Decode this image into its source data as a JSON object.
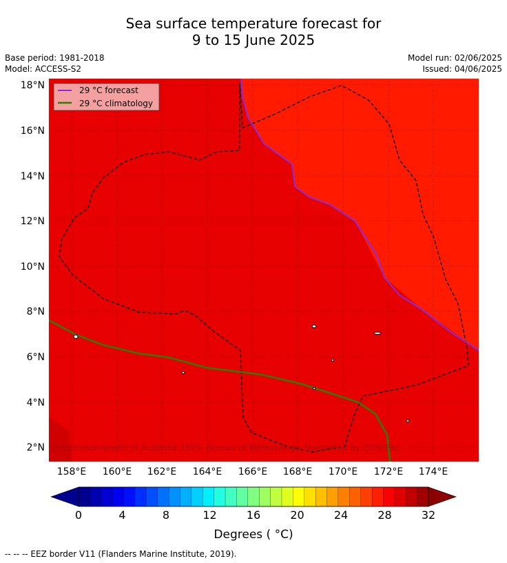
{
  "title": {
    "line1": "Sea surface temperature forecast for",
    "line2": "9 to 15 June 2025"
  },
  "meta": {
    "base_period": "Base period: 1981-2018",
    "model": "Model: ACCESS-S2",
    "model_run": "Model run: 02/06/2025",
    "issued": "Issued: 04/06/2025"
  },
  "map": {
    "lat_labels": [
      "18°N",
      "16°N",
      "14°N",
      "12°N",
      "10°N",
      "8°N",
      "6°N",
      "4°N",
      "2°N"
    ],
    "lon_labels": [
      "158°E",
      "160°E",
      "162°E",
      "164°E",
      "166°E",
      "168°E",
      "170°E",
      "172°E",
      "174°E"
    ],
    "legend": {
      "forecast": "29 °C  forecast",
      "climatology": "29 °C  climatology"
    },
    "copyright": "© Commonwealth of Australia 2025, Bureau of Meteorology. Supported by COSPPac",
    "colors": {
      "sst_28_29": "#e60000",
      "sst_29_30": "#ff1a00",
      "sst_27_28": "#d00000",
      "forecast_line": "#8a2be2",
      "climatology_line": "#2e7d00",
      "eez_border": "#000000"
    }
  },
  "colorbar": {
    "ticks": [
      "0",
      "4",
      "8",
      "12",
      "16",
      "20",
      "24",
      "28",
      "32"
    ],
    "label": "Degrees ( °C)",
    "colors": [
      "#00008f",
      "#0000b0",
      "#0000d0",
      "#0000f0",
      "#0010ff",
      "#0030ff",
      "#0050ff",
      "#0070ff",
      "#0090ff",
      "#00b0ff",
      "#00d0ff",
      "#00f0ff",
      "#20ffe0",
      "#40ffc0",
      "#60ffa0",
      "#80ff80",
      "#a0ff60",
      "#c0ff40",
      "#e0ff20",
      "#ffff00",
      "#ffe000",
      "#ffc000",
      "#ffa000",
      "#ff8000",
      "#ff6000",
      "#ff4000",
      "#ff2000",
      "#ff0000",
      "#e00000",
      "#c00000",
      "#a00000"
    ]
  },
  "footer": "--  --  -- EEZ border V11 (Flanders Marine Institute, 2019)."
}
